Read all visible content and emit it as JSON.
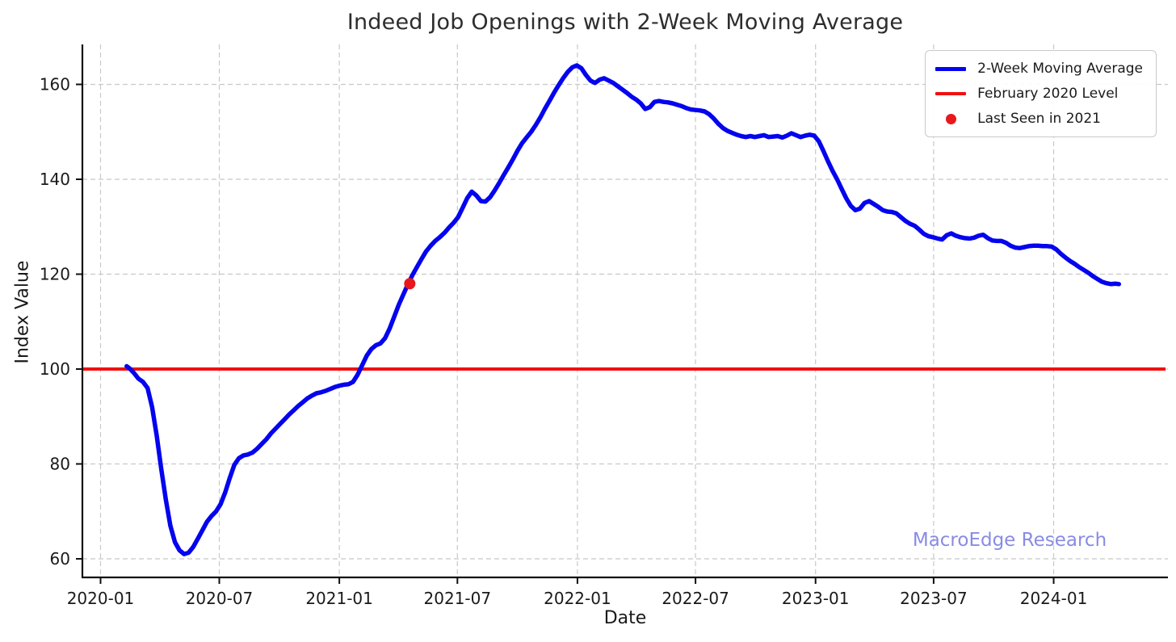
{
  "title": "Indeed Job Openings with 2-Week Moving Average",
  "watermark": {
    "text": "MacroEdge Research",
    "color": "#7c7fe2"
  },
  "legend": {
    "items": [
      {
        "label": "2-Week Moving Average",
        "marker": "line",
        "color": "#0404ee",
        "thickness": 5
      },
      {
        "label": "February 2020 Level",
        "marker": "line",
        "color": "#f01010",
        "thickness": 3.5
      },
      {
        "label": "Last Seen in 2021",
        "marker": "dot",
        "color": "#e8181c",
        "size": 13
      }
    ]
  },
  "chart_data": {
    "type": "line",
    "title": "Indeed Job Openings with 2-Week Moving Average",
    "xlabel": "Date",
    "ylabel": "Index Value",
    "grid": true,
    "grid_color": "#c8c8c8",
    "spine_color": "#101010",
    "ylim": [
      56,
      168.5
    ],
    "xlim": [
      "2019-12-04",
      "2024-06-20"
    ],
    "y_ticks": [
      60,
      80,
      100,
      120,
      140,
      160
    ],
    "x_ticks": [
      {
        "date": "2020-01-01",
        "label": "2020-01"
      },
      {
        "date": "2020-07-01",
        "label": "2020-07"
      },
      {
        "date": "2021-01-01",
        "label": "2021-01"
      },
      {
        "date": "2021-07-01",
        "label": "2021-07"
      },
      {
        "date": "2022-01-01",
        "label": "2022-01"
      },
      {
        "date": "2022-07-01",
        "label": "2022-07"
      },
      {
        "date": "2023-01-01",
        "label": "2023-01"
      },
      {
        "date": "2023-07-01",
        "label": "2023-07"
      },
      {
        "date": "2024-01-01",
        "label": "2024-01"
      }
    ],
    "reference_line": {
      "name": "February 2020 Level",
      "value": 100,
      "color": "#f01010"
    },
    "highlight_point": {
      "name": "Last Seen in 2021",
      "date": "2021-04-19",
      "value": 118,
      "color": "#e8181c"
    },
    "series": [
      {
        "name": "2-Week Moving Average",
        "color": "#0404ee",
        "points": [
          [
            "2020-02-10",
            100.6
          ],
          [
            "2020-02-14",
            100.2
          ],
          [
            "2020-02-21",
            99.2
          ],
          [
            "2020-02-28",
            98.0
          ],
          [
            "2020-03-06",
            97.3
          ],
          [
            "2020-03-13",
            96.0
          ],
          [
            "2020-03-20",
            92.0
          ],
          [
            "2020-03-27",
            86.0
          ],
          [
            "2020-04-03",
            79.0
          ],
          [
            "2020-04-10",
            72.5
          ],
          [
            "2020-04-17",
            67.0
          ],
          [
            "2020-04-24",
            63.5
          ],
          [
            "2020-05-01",
            61.8
          ],
          [
            "2020-05-08",
            61.0
          ],
          [
            "2020-05-15",
            61.3
          ],
          [
            "2020-05-22",
            62.5
          ],
          [
            "2020-05-29",
            64.2
          ],
          [
            "2020-06-05",
            66.0
          ],
          [
            "2020-06-12",
            67.8
          ],
          [
            "2020-06-19",
            69.0
          ],
          [
            "2020-06-26",
            70.0
          ],
          [
            "2020-07-03",
            71.5
          ],
          [
            "2020-07-10",
            74.0
          ],
          [
            "2020-07-17",
            77.0
          ],
          [
            "2020-07-24",
            79.8
          ],
          [
            "2020-07-31",
            81.2
          ],
          [
            "2020-08-07",
            81.8
          ],
          [
            "2020-08-14",
            82.0
          ],
          [
            "2020-08-21",
            82.4
          ],
          [
            "2020-08-28",
            83.2
          ],
          [
            "2020-09-04",
            84.2
          ],
          [
            "2020-09-11",
            85.2
          ],
          [
            "2020-09-18",
            86.4
          ],
          [
            "2020-09-25",
            87.4
          ],
          [
            "2020-10-02",
            88.4
          ],
          [
            "2020-10-09",
            89.4
          ],
          [
            "2020-10-16",
            90.4
          ],
          [
            "2020-10-23",
            91.3
          ],
          [
            "2020-10-30",
            92.2
          ],
          [
            "2020-11-06",
            93.0
          ],
          [
            "2020-11-13",
            93.8
          ],
          [
            "2020-11-20",
            94.4
          ],
          [
            "2020-11-27",
            94.9
          ],
          [
            "2020-12-04",
            95.1
          ],
          [
            "2020-12-11",
            95.4
          ],
          [
            "2020-12-18",
            95.8
          ],
          [
            "2020-12-25",
            96.2
          ],
          [
            "2021-01-01",
            96.5
          ],
          [
            "2021-01-08",
            96.7
          ],
          [
            "2021-01-15",
            96.8
          ],
          [
            "2021-01-22",
            97.3
          ],
          [
            "2021-01-29",
            98.8
          ],
          [
            "2021-02-05",
            100.8
          ],
          [
            "2021-02-12",
            102.8
          ],
          [
            "2021-02-19",
            104.2
          ],
          [
            "2021-02-26",
            105.0
          ],
          [
            "2021-03-05",
            105.4
          ],
          [
            "2021-03-12",
            106.5
          ],
          [
            "2021-03-19",
            108.5
          ],
          [
            "2021-03-26",
            111.0
          ],
          [
            "2021-04-02",
            113.5
          ],
          [
            "2021-04-09",
            115.7
          ],
          [
            "2021-04-16",
            117.8
          ],
          [
            "2021-04-23",
            119.8
          ],
          [
            "2021-04-30",
            121.5
          ],
          [
            "2021-05-07",
            123.2
          ],
          [
            "2021-05-14",
            124.8
          ],
          [
            "2021-05-21",
            126.0
          ],
          [
            "2021-05-28",
            127.0
          ],
          [
            "2021-06-04",
            127.8
          ],
          [
            "2021-06-11",
            128.7
          ],
          [
            "2021-06-18",
            129.8
          ],
          [
            "2021-06-25",
            130.8
          ],
          [
            "2021-07-02",
            132.0
          ],
          [
            "2021-07-09",
            134.0
          ],
          [
            "2021-07-16",
            136.0
          ],
          [
            "2021-07-23",
            137.4
          ],
          [
            "2021-07-30",
            136.6
          ],
          [
            "2021-08-06",
            135.4
          ],
          [
            "2021-08-13",
            135.3
          ],
          [
            "2021-08-20",
            136.2
          ],
          [
            "2021-08-27",
            137.6
          ],
          [
            "2021-09-03",
            139.2
          ],
          [
            "2021-09-10",
            140.9
          ],
          [
            "2021-09-17",
            142.5
          ],
          [
            "2021-09-24",
            144.2
          ],
          [
            "2021-10-01",
            146.0
          ],
          [
            "2021-10-08",
            147.6
          ],
          [
            "2021-10-15",
            148.8
          ],
          [
            "2021-10-22",
            150.0
          ],
          [
            "2021-10-29",
            151.4
          ],
          [
            "2021-11-05",
            153.0
          ],
          [
            "2021-11-12",
            154.8
          ],
          [
            "2021-11-19",
            156.5
          ],
          [
            "2021-11-26",
            158.2
          ],
          [
            "2021-12-03",
            159.8
          ],
          [
            "2021-12-10",
            161.3
          ],
          [
            "2021-12-17",
            162.6
          ],
          [
            "2021-12-24",
            163.6
          ],
          [
            "2021-12-31",
            164.0
          ],
          [
            "2022-01-07",
            163.4
          ],
          [
            "2022-01-14",
            162.0
          ],
          [
            "2022-01-21",
            160.8
          ],
          [
            "2022-01-28",
            160.3
          ],
          [
            "2022-02-04",
            161.0
          ],
          [
            "2022-02-11",
            161.3
          ],
          [
            "2022-02-18",
            160.8
          ],
          [
            "2022-02-25",
            160.3
          ],
          [
            "2022-03-04",
            159.6
          ],
          [
            "2022-03-11",
            158.9
          ],
          [
            "2022-03-18",
            158.2
          ],
          [
            "2022-03-25",
            157.4
          ],
          [
            "2022-04-01",
            156.8
          ],
          [
            "2022-04-08",
            156.0
          ],
          [
            "2022-04-15",
            154.8
          ],
          [
            "2022-04-22",
            155.2
          ],
          [
            "2022-04-29",
            156.3
          ],
          [
            "2022-05-06",
            156.5
          ],
          [
            "2022-05-13",
            156.3
          ],
          [
            "2022-05-20",
            156.2
          ],
          [
            "2022-05-27",
            156.0
          ],
          [
            "2022-06-03",
            155.7
          ],
          [
            "2022-06-10",
            155.4
          ],
          [
            "2022-06-17",
            155.0
          ],
          [
            "2022-06-24",
            154.7
          ],
          [
            "2022-07-01",
            154.6
          ],
          [
            "2022-07-08",
            154.5
          ],
          [
            "2022-07-15",
            154.3
          ],
          [
            "2022-07-22",
            153.7
          ],
          [
            "2022-07-29",
            152.8
          ],
          [
            "2022-08-05",
            151.7
          ],
          [
            "2022-08-12",
            150.8
          ],
          [
            "2022-08-19",
            150.2
          ],
          [
            "2022-08-26",
            149.8
          ],
          [
            "2022-09-02",
            149.4
          ],
          [
            "2022-09-09",
            149.1
          ],
          [
            "2022-09-16",
            148.9
          ],
          [
            "2022-09-23",
            149.1
          ],
          [
            "2022-09-30",
            148.9
          ],
          [
            "2022-10-07",
            149.1
          ],
          [
            "2022-10-14",
            149.3
          ],
          [
            "2022-10-21",
            148.9
          ],
          [
            "2022-10-28",
            149.0
          ],
          [
            "2022-11-04",
            149.1
          ],
          [
            "2022-11-11",
            148.8
          ],
          [
            "2022-11-18",
            149.2
          ],
          [
            "2022-11-25",
            149.7
          ],
          [
            "2022-12-02",
            149.3
          ],
          [
            "2022-12-09",
            148.9
          ],
          [
            "2022-12-16",
            149.2
          ],
          [
            "2022-12-23",
            149.4
          ],
          [
            "2022-12-30",
            149.2
          ],
          [
            "2023-01-06",
            148.0
          ],
          [
            "2023-01-13",
            146.0
          ],
          [
            "2023-01-20",
            143.8
          ],
          [
            "2023-01-27",
            141.8
          ],
          [
            "2023-02-03",
            140.0
          ],
          [
            "2023-02-10",
            138.0
          ],
          [
            "2023-02-17",
            136.0
          ],
          [
            "2023-02-24",
            134.4
          ],
          [
            "2023-03-03",
            133.5
          ],
          [
            "2023-03-10",
            133.8
          ],
          [
            "2023-03-17",
            135.0
          ],
          [
            "2023-03-24",
            135.4
          ],
          [
            "2023-03-31",
            134.8
          ],
          [
            "2023-04-07",
            134.2
          ],
          [
            "2023-04-14",
            133.5
          ],
          [
            "2023-04-21",
            133.2
          ],
          [
            "2023-04-28",
            133.1
          ],
          [
            "2023-05-05",
            132.8
          ],
          [
            "2023-05-12",
            132.0
          ],
          [
            "2023-05-19",
            131.2
          ],
          [
            "2023-05-26",
            130.6
          ],
          [
            "2023-06-02",
            130.2
          ],
          [
            "2023-06-09",
            129.4
          ],
          [
            "2023-06-16",
            128.5
          ],
          [
            "2023-06-23",
            128.0
          ],
          [
            "2023-06-30",
            127.8
          ],
          [
            "2023-07-07",
            127.5
          ],
          [
            "2023-07-14",
            127.3
          ],
          [
            "2023-07-21",
            128.2
          ],
          [
            "2023-07-28",
            128.6
          ],
          [
            "2023-08-04",
            128.1
          ],
          [
            "2023-08-11",
            127.8
          ],
          [
            "2023-08-18",
            127.6
          ],
          [
            "2023-08-25",
            127.5
          ],
          [
            "2023-09-01",
            127.7
          ],
          [
            "2023-09-08",
            128.1
          ],
          [
            "2023-09-15",
            128.3
          ],
          [
            "2023-09-22",
            127.6
          ],
          [
            "2023-09-29",
            127.1
          ],
          [
            "2023-10-06",
            127.0
          ],
          [
            "2023-10-13",
            127.0
          ],
          [
            "2023-10-20",
            126.6
          ],
          [
            "2023-10-27",
            126.0
          ],
          [
            "2023-11-03",
            125.6
          ],
          [
            "2023-11-10",
            125.5
          ],
          [
            "2023-11-17",
            125.7
          ],
          [
            "2023-11-24",
            125.9
          ],
          [
            "2023-12-01",
            126.0
          ],
          [
            "2023-12-08",
            126.0
          ],
          [
            "2023-12-15",
            125.9
          ],
          [
            "2023-12-22",
            125.9
          ],
          [
            "2023-12-29",
            125.8
          ],
          [
            "2024-01-05",
            125.2
          ],
          [
            "2024-01-12",
            124.3
          ],
          [
            "2024-01-19",
            123.5
          ],
          [
            "2024-01-26",
            122.8
          ],
          [
            "2024-02-02",
            122.2
          ],
          [
            "2024-02-09",
            121.5
          ],
          [
            "2024-02-16",
            120.9
          ],
          [
            "2024-02-23",
            120.3
          ],
          [
            "2024-03-01",
            119.6
          ],
          [
            "2024-03-08",
            119.0
          ],
          [
            "2024-03-15",
            118.4
          ],
          [
            "2024-03-22",
            118.1
          ],
          [
            "2024-03-29",
            117.9
          ],
          [
            "2024-04-05",
            118.0
          ],
          [
            "2024-04-10",
            117.9
          ]
        ]
      }
    ]
  }
}
